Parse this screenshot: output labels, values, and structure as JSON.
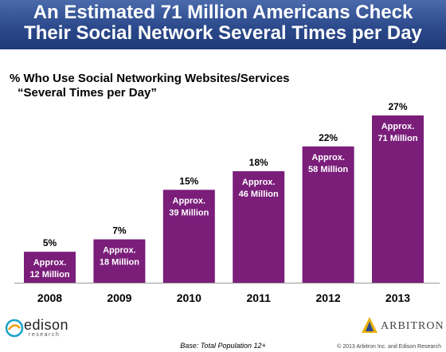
{
  "header": {
    "title_line1": "An Estimated 71 Million Americans Check",
    "title_line2": "Their Social Network Several Times per Day"
  },
  "colors": {
    "header": "#2c4a8c",
    "bar": "#7a1e7a",
    "bar_text": "#ffffff"
  },
  "chart_data": {
    "type": "bar",
    "title": "% Who Use Social Networking Websites/Services",
    "subtitle": "“Several Times per Day”",
    "categories": [
      "2008",
      "2009",
      "2010",
      "2011",
      "2012",
      "2013"
    ],
    "values": [
      5,
      7,
      15,
      18,
      22,
      27
    ],
    "value_labels": [
      "5%",
      "7%",
      "15%",
      "18%",
      "22%",
      "27%"
    ],
    "bar_annotations": [
      [
        "Approx.",
        "12 Million"
      ],
      [
        "Approx.",
        "18 Million"
      ],
      [
        "Approx.",
        "39 Million"
      ],
      [
        "Approx.",
        "46 Million"
      ],
      [
        "Approx.",
        "58 Million"
      ],
      [
        "Approx.",
        "71 Million"
      ]
    ],
    "ylim": [
      0,
      27
    ],
    "xlabel": "",
    "ylabel": "",
    "grid": false,
    "legend": "none"
  },
  "footer": {
    "base": "Base: Total Population 12+",
    "copyright": "© 2013 Arbitron Inc. and Edison Research"
  },
  "logos": {
    "edison_name": "edison",
    "edison_sub": "research",
    "arbitron_name": "ARBITRON"
  }
}
